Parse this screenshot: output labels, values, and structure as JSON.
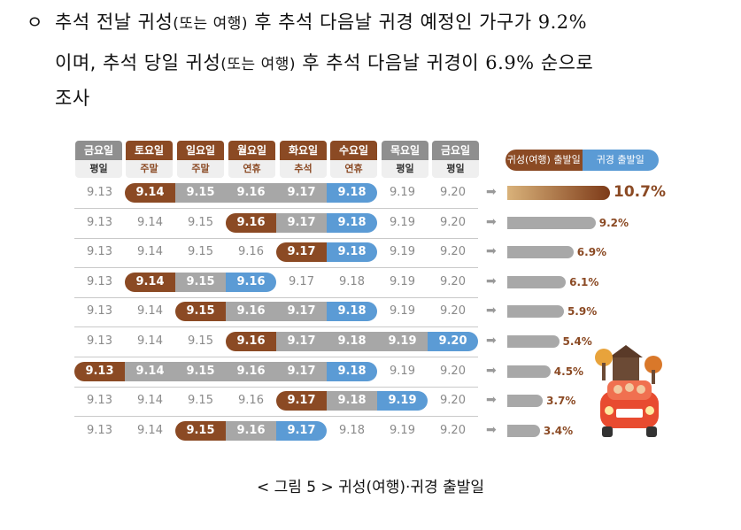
{
  "paragraph": {
    "bullet": "ㅇ",
    "line1_a": "추석 전날 귀성",
    "line1_b": "(또는 여행)",
    "line1_c": "후 추석 다음날 귀경 예정인 가구가",
    "line1_num": "9.2%",
    "line2_a": "이며, 추석 당일 귀성",
    "line2_b": "(또는 여행)",
    "line2_c": "후 추석 다음날 귀경이",
    "line2_num": "6.9%",
    "line2_d": "순으로",
    "line3": "조사"
  },
  "header": [
    {
      "day": "금요일",
      "type": "평일",
      "style": "gray"
    },
    {
      "day": "토요일",
      "type": "주말",
      "style": "brown"
    },
    {
      "day": "일요일",
      "type": "주말",
      "style": "brown"
    },
    {
      "day": "월요일",
      "type": "연휴",
      "style": "brown"
    },
    {
      "day": "화요일",
      "type": "추석",
      "style": "brown"
    },
    {
      "day": "수요일",
      "type": "연휴",
      "style": "brown"
    },
    {
      "day": "목요일",
      "type": "평일",
      "style": "gray"
    },
    {
      "day": "금요일",
      "type": "평일",
      "style": "gray"
    }
  ],
  "dates": [
    "9.13",
    "9.14",
    "9.15",
    "9.16",
    "9.17",
    "9.18",
    "9.19",
    "9.20"
  ],
  "legend": {
    "depart": "귀성(여행) 출발일",
    "return": "귀경 출발일"
  },
  "colors": {
    "depart": "#8b4a24",
    "stay": "#a7a7a7",
    "return": "#5b9bd5"
  },
  "rows": [
    {
      "start": 1,
      "end": 5,
      "pct": "10.7%",
      "value": 10.7
    },
    {
      "start": 3,
      "end": 5,
      "pct": "9.2%",
      "value": 9.2
    },
    {
      "start": 4,
      "end": 5,
      "pct": "6.9%",
      "value": 6.9
    },
    {
      "start": 1,
      "end": 3,
      "pct": "6.1%",
      "value": 6.1
    },
    {
      "start": 2,
      "end": 5,
      "pct": "5.9%",
      "value": 5.9
    },
    {
      "start": 3,
      "end": 7,
      "pct": "5.4%",
      "value": 5.4
    },
    {
      "start": 0,
      "end": 5,
      "pct": "4.5%",
      "value": 4.5
    },
    {
      "start": 4,
      "end": 6,
      "pct": "3.7%",
      "value": 3.7
    },
    {
      "start": 2,
      "end": 4,
      "pct": "3.4%",
      "value": 3.4
    }
  ],
  "caption": "< 그림 5 > 귀성(여행)·귀경 출발일",
  "illustration": "car-with-family-icon"
}
